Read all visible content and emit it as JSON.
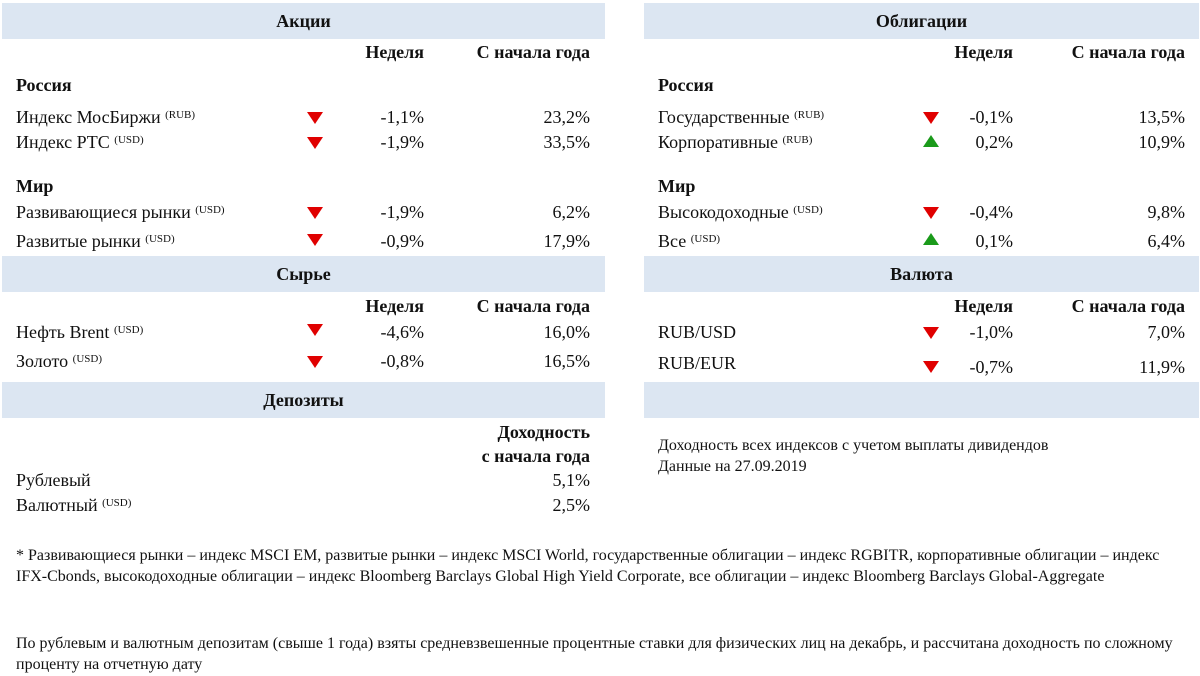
{
  "stocks": {
    "title": "Акции",
    "col_week": "Неделя",
    "col_ytd": "С начала года",
    "russia_label": "Россия",
    "world_label": "Мир",
    "rows": [
      {
        "name": "Индекс МосБиржи",
        "cur": "(RUB)",
        "dir": "down",
        "week": "-1,1%",
        "ytd": "23,2%"
      },
      {
        "name": "Индекс РТС",
        "cur": "(USD)",
        "dir": "down",
        "week": "-1,9%",
        "ytd": "33,5%"
      },
      {
        "name": "Развивающиеся рынки",
        "cur": "(USD)",
        "dir": "down",
        "week": "-1,9%",
        "ytd": "6,2%"
      },
      {
        "name": "Развитые рынки",
        "cur": "(USD)",
        "dir": "down",
        "week": "-0,9%",
        "ytd": "17,9%"
      }
    ]
  },
  "bonds": {
    "title": "Облигации",
    "col_week": "Неделя",
    "col_ytd": "С начала года",
    "russia_label": "Россия",
    "world_label": "Мир",
    "rows": [
      {
        "name": "Государственные",
        "cur": "(RUB)",
        "dir": "down",
        "week": "-0,1%",
        "ytd": "13,5%"
      },
      {
        "name": "Корпоративные",
        "cur": "(RUB)",
        "dir": "up",
        "week": "0,2%",
        "ytd": "10,9%"
      },
      {
        "name": "Высокодоходные",
        "cur": "(USD)",
        "dir": "down",
        "week": "-0,4%",
        "ytd": "9,8%"
      },
      {
        "name": "Все",
        "cur": "(USD)",
        "dir": "up",
        "week": "0,1%",
        "ytd": "6,4%"
      }
    ]
  },
  "commodities": {
    "title": "Сырье",
    "col_week": "Неделя",
    "col_ytd": "С начала года",
    "rows": [
      {
        "name": "Нефть Brent",
        "cur": "(USD)",
        "dir": "down",
        "week": "-4,6%",
        "ytd": "16,0%"
      },
      {
        "name": "Золото",
        "cur": "(USD)",
        "dir": "down",
        "week": "-0,8%",
        "ytd": "16,5%"
      }
    ]
  },
  "currency": {
    "title": "Валюта",
    "col_week": "Неделя",
    "col_ytd": "С начала года",
    "rows": [
      {
        "name": "RUB/USD",
        "dir": "down",
        "week": "-1,0%",
        "ytd": "7,0%"
      },
      {
        "name": "RUB/EUR",
        "dir": "down",
        "week": "-0,7%",
        "ytd": "11,9%"
      }
    ]
  },
  "deposits": {
    "title": "Депозиты",
    "col_line1": "Доходность",
    "col_line2": "с начала года",
    "rows": [
      {
        "name": "Рублевый",
        "cur": "",
        "ytd": "5,1%"
      },
      {
        "name": "Валютный",
        "cur": "(USD)",
        "ytd": "2,5%"
      }
    ]
  },
  "info": {
    "line1": "Доходность всех индексов с учетом выплаты дивидендов",
    "line2": "Данные на 27.09.2019"
  },
  "footnote1": "* Развивающиеся рынки – индекс MSCI EM, развитые рынки – индекс MSCI World, государственные облигации – индекс RGBITR, корпоративные облигации – индекс IFX-Cbonds, высокодоходные облигации – индекс Bloomberg Barclays Global High Yield Corporate, все облигации – индекс Bloomberg Barclays Global-Aggregate",
  "footnote2": "По рублевым и валютным депозитам (свыше 1 года) взяты средневзвешенные процентные ставки для физических лиц на декабрь, и рассчитана доходность по сложному проценту на отчетную дату",
  "colors": {
    "header_bg": "#dce6f2",
    "down": "#e00000",
    "up": "#1a9a1a"
  }
}
